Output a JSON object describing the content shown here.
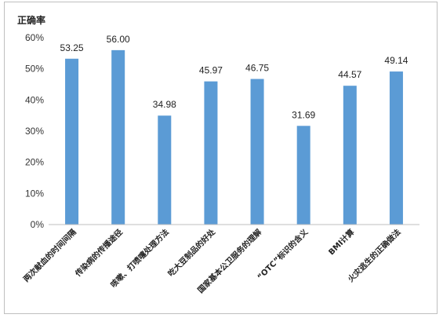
{
  "chart_data": {
    "type": "bar",
    "ylabel": "正确率",
    "ylim": [
      0,
      60
    ],
    "yticks": [
      "0%",
      "10%",
      "20%",
      "30%",
      "40%",
      "50%",
      "60%"
    ],
    "grid": false,
    "legend": "none",
    "color": "#5b9bd5",
    "categories": [
      "两次献血的时间间隔",
      "传染病的传播途径",
      "咳嗽、打喷嚏处理方法",
      "吃大豆制品的好处",
      "国家基本公卫服务的理解",
      "“OTC”标识的含义",
      "BMI计算",
      "火灾逃生的正确做法"
    ],
    "values": [
      53.25,
      56.0,
      34.98,
      45.97,
      46.75,
      31.69,
      44.57,
      49.14
    ],
    "value_labels": [
      "53.25",
      "56.00",
      "34.98",
      "45.97",
      "46.75",
      "31.69",
      "44.57",
      "49.14"
    ]
  }
}
